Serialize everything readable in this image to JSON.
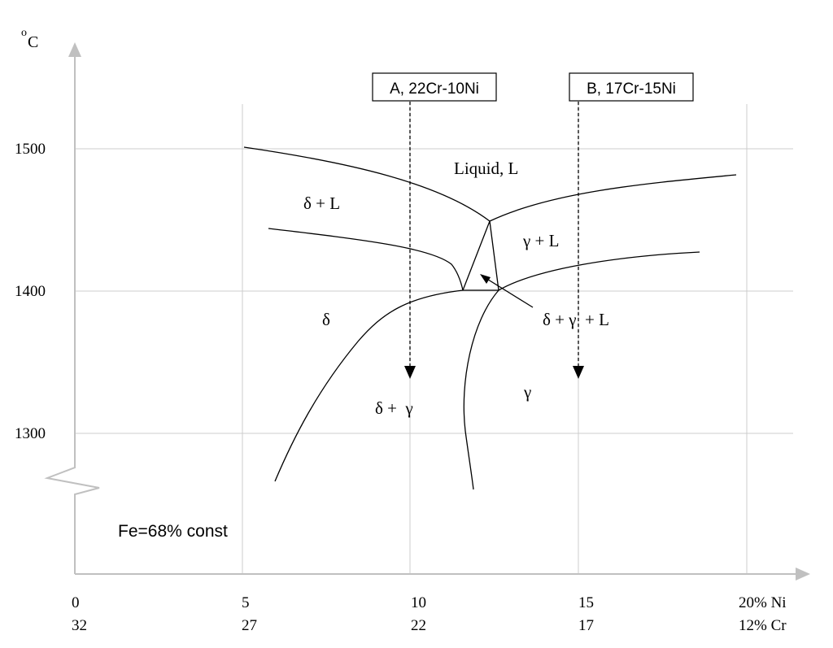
{
  "y_unit_sup": "o",
  "y_unit": "C",
  "y_ticks": [
    "1500",
    "1400",
    "1300"
  ],
  "x_ticks_ni": [
    "0",
    "5",
    "10",
    "15",
    "20% Ni"
  ],
  "x_ticks_cr": [
    "32",
    "27",
    "22",
    "17",
    "12% Cr"
  ],
  "alloy_a": "A, 22Cr-10Ni",
  "alloy_b": "B, 17Cr-15Ni",
  "regions": {
    "liquid": "Liquid, L",
    "delta_l": "δ + L",
    "gamma_l": "γ + L",
    "delta_gamma_l": "δ + γ  + L",
    "delta": "δ",
    "delta_gamma": "δ +  γ",
    "gamma": "γ"
  },
  "note": "Fe=68% const",
  "colors": {
    "axis": "#c0c0c0",
    "grid": "#cccccc",
    "curve": "#000000"
  }
}
